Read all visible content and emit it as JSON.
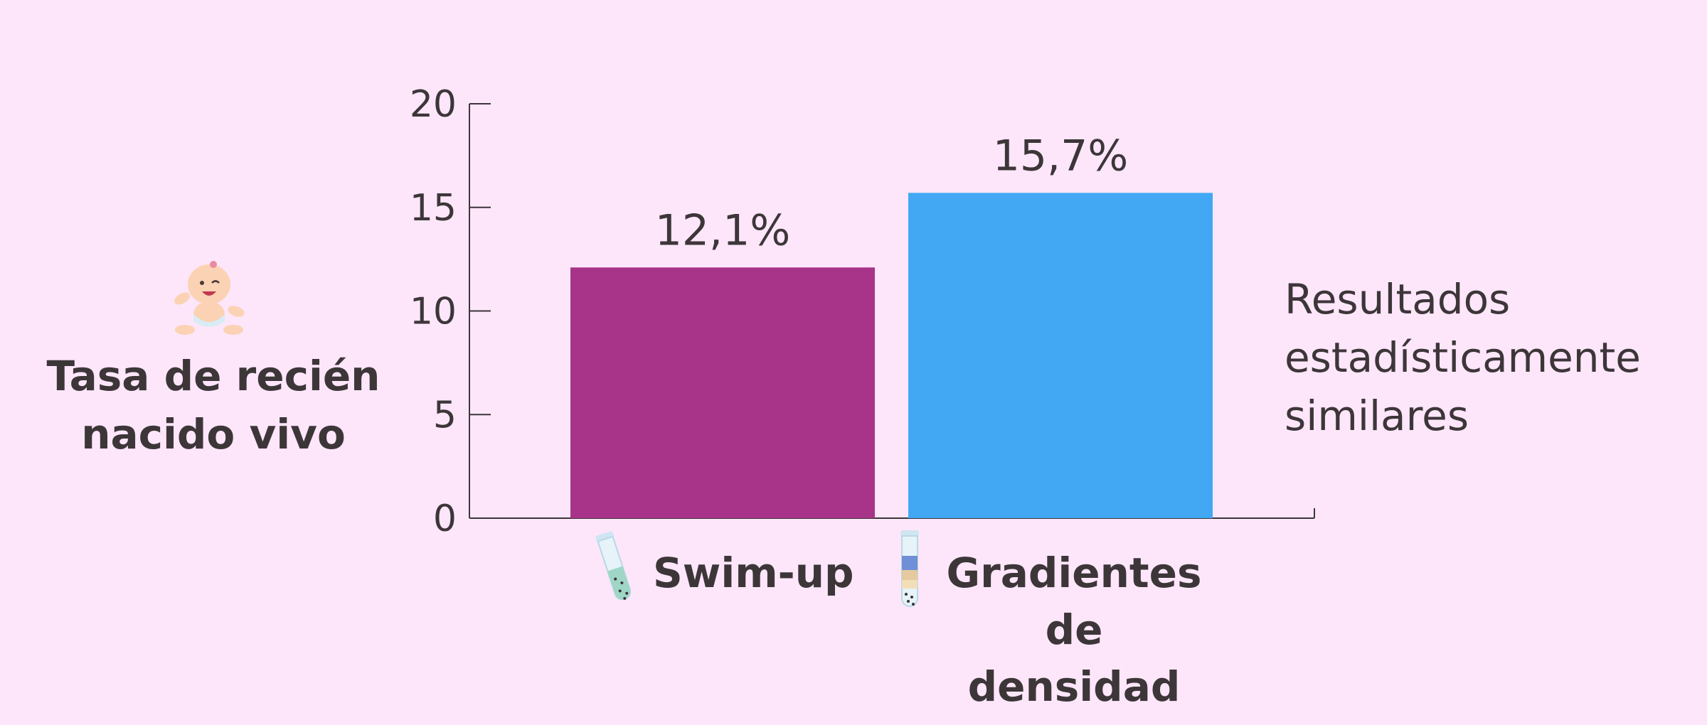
{
  "chart_data": {
    "type": "bar",
    "ylabel": "Tasa de recién nacido vivo",
    "ylabel_lines": [
      "Tasa de recién",
      "nacido vivo"
    ],
    "categories": [
      "Swim-up",
      "Gradientes de densidad"
    ],
    "category_lines": [
      [
        "Swim-up"
      ],
      [
        "Gradientes de",
        "densidad"
      ]
    ],
    "values": [
      12.1,
      15.7
    ],
    "data_labels": [
      "12,1%",
      "15,7%"
    ],
    "bar_colors": [
      "#a73489",
      "#42a8f3"
    ],
    "ylim": [
      0,
      20
    ],
    "yticks": [
      0,
      5,
      10,
      15,
      20
    ],
    "ytick_labels": [
      "0",
      "5",
      "10",
      "15",
      "20"
    ],
    "grid": false,
    "annotation": "Resultados estadísticamente similares",
    "annotation_lines": [
      "Resultados",
      "estadísticamente",
      "similares"
    ]
  },
  "icons": {
    "ylabel_icon": "baby-icon",
    "category_icons": [
      "swim-up-tube-icon",
      "density-gradient-tube-icon"
    ]
  },
  "colors": {
    "background": "#fde6fa",
    "axis": "#3d3639",
    "text": "#3d3639"
  }
}
